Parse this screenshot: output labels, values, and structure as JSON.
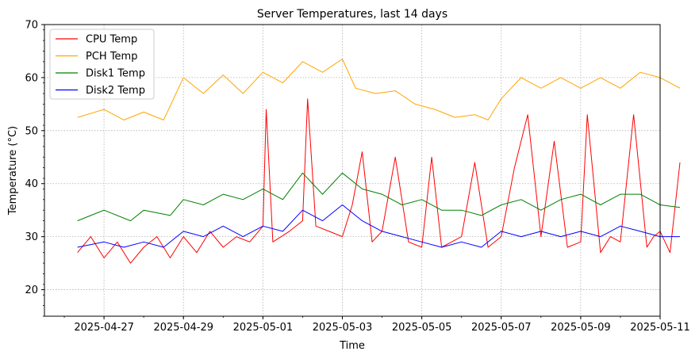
{
  "chart_data": {
    "type": "line",
    "title": "Server Temperatures, last 14 days",
    "xlabel": "Time",
    "ylabel": "Temperature (°C)",
    "xlim": [
      "2025-04-25T12:00",
      "2025-05-11T00:00"
    ],
    "ylim": [
      15,
      70
    ],
    "x_ticks": [
      "2025-04-27",
      "2025-04-29",
      "2025-05-01",
      "2025-05-03",
      "2025-05-05",
      "2025-05-07",
      "2025-05-09",
      "2025-05-11"
    ],
    "y_ticks": [
      20,
      30,
      40,
      50,
      60,
      70
    ],
    "grid": true,
    "legend_position": "top-left",
    "series": [
      {
        "name": "CPU Temp",
        "color": "#ff0000",
        "points": [
          [
            "2025-04-26T08:00",
            27
          ],
          [
            "2025-04-26T16:00",
            30
          ],
          [
            "2025-04-27T00:00",
            26
          ],
          [
            "2025-04-27T08:00",
            29
          ],
          [
            "2025-04-27T16:00",
            25
          ],
          [
            "2025-04-28T00:00",
            28
          ],
          [
            "2025-04-28T08:00",
            30
          ],
          [
            "2025-04-28T16:00",
            26
          ],
          [
            "2025-04-29T00:00",
            30
          ],
          [
            "2025-04-29T08:00",
            27
          ],
          [
            "2025-04-29T16:00",
            31
          ],
          [
            "2025-04-30T00:00",
            28
          ],
          [
            "2025-04-30T08:00",
            30
          ],
          [
            "2025-04-30T16:00",
            29
          ],
          [
            "2025-05-01T00:00",
            32
          ],
          [
            "2025-05-01T02:00",
            54
          ],
          [
            "2025-05-01T06:00",
            29
          ],
          [
            "2025-05-01T16:00",
            31
          ],
          [
            "2025-05-02T00:00",
            33
          ],
          [
            "2025-05-02T03:00",
            56
          ],
          [
            "2025-05-02T08:00",
            32
          ],
          [
            "2025-05-02T16:00",
            31
          ],
          [
            "2025-05-03T00:00",
            30
          ],
          [
            "2025-05-03T06:00",
            36
          ],
          [
            "2025-05-03T12:00",
            46
          ],
          [
            "2025-05-03T18:00",
            29
          ],
          [
            "2025-05-04T00:00",
            31
          ],
          [
            "2025-05-04T08:00",
            45
          ],
          [
            "2025-05-04T16:00",
            29
          ],
          [
            "2025-05-05T00:00",
            28
          ],
          [
            "2025-05-05T06:00",
            45
          ],
          [
            "2025-05-05T12:00",
            28
          ],
          [
            "2025-05-05T18:00",
            29
          ],
          [
            "2025-05-06T00:00",
            30
          ],
          [
            "2025-05-06T08:00",
            44
          ],
          [
            "2025-05-06T16:00",
            28
          ],
          [
            "2025-05-07T00:00",
            30
          ],
          [
            "2025-05-07T08:00",
            43
          ],
          [
            "2025-05-07T16:00",
            53
          ],
          [
            "2025-05-08T00:00",
            30
          ],
          [
            "2025-05-08T08:00",
            48
          ],
          [
            "2025-05-08T16:00",
            28
          ],
          [
            "2025-05-09T00:00",
            29
          ],
          [
            "2025-05-09T04:00",
            53
          ],
          [
            "2025-05-09T12:00",
            27
          ],
          [
            "2025-05-09T18:00",
            30
          ],
          [
            "2025-05-10T00:00",
            29
          ],
          [
            "2025-05-10T08:00",
            53
          ],
          [
            "2025-05-10T16:00",
            28
          ],
          [
            "2025-05-10T20:00",
            30
          ],
          [
            "2025-05-11T00:00",
            31
          ],
          [
            "2025-05-11T06:00",
            27
          ],
          [
            "2025-05-11T12:00",
            44
          ]
        ]
      },
      {
        "name": "PCH Temp",
        "color": "#ffa500",
        "points": [
          [
            "2025-04-26T08:00",
            52.5
          ],
          [
            "2025-04-27T00:00",
            54
          ],
          [
            "2025-04-27T12:00",
            52
          ],
          [
            "2025-04-28T00:00",
            53.5
          ],
          [
            "2025-04-28T12:00",
            52
          ],
          [
            "2025-04-29T00:00",
            60
          ],
          [
            "2025-04-29T12:00",
            57
          ],
          [
            "2025-04-30T00:00",
            60.5
          ],
          [
            "2025-04-30T12:00",
            57
          ],
          [
            "2025-05-01T00:00",
            61
          ],
          [
            "2025-05-01T12:00",
            59
          ],
          [
            "2025-05-02T00:00",
            63
          ],
          [
            "2025-05-02T12:00",
            61
          ],
          [
            "2025-05-03T00:00",
            63.5
          ],
          [
            "2025-05-03T08:00",
            58
          ],
          [
            "2025-05-03T20:00",
            57
          ],
          [
            "2025-05-04T08:00",
            57.5
          ],
          [
            "2025-05-04T20:00",
            55
          ],
          [
            "2025-05-05T08:00",
            54
          ],
          [
            "2025-05-05T20:00",
            52.5
          ],
          [
            "2025-05-06T08:00",
            53
          ],
          [
            "2025-05-06T16:00",
            52
          ],
          [
            "2025-05-07T00:00",
            56
          ],
          [
            "2025-05-07T12:00",
            60
          ],
          [
            "2025-05-08T00:00",
            58
          ],
          [
            "2025-05-08T12:00",
            60
          ],
          [
            "2025-05-09T00:00",
            58
          ],
          [
            "2025-05-09T12:00",
            60
          ],
          [
            "2025-05-10T00:00",
            58
          ],
          [
            "2025-05-10T12:00",
            61
          ],
          [
            "2025-05-11T00:00",
            60
          ],
          [
            "2025-05-11T12:00",
            58
          ]
        ]
      },
      {
        "name": "Disk1 Temp",
        "color": "#008000",
        "points": [
          [
            "2025-04-26T08:00",
            33
          ],
          [
            "2025-04-26T16:00",
            34
          ],
          [
            "2025-04-27T00:00",
            35
          ],
          [
            "2025-04-27T16:00",
            33
          ],
          [
            "2025-04-28T00:00",
            35
          ],
          [
            "2025-04-28T16:00",
            34
          ],
          [
            "2025-04-29T00:00",
            37
          ],
          [
            "2025-04-29T12:00",
            36
          ],
          [
            "2025-04-30T00:00",
            38
          ],
          [
            "2025-04-30T12:00",
            37
          ],
          [
            "2025-05-01T00:00",
            39
          ],
          [
            "2025-05-01T12:00",
            37
          ],
          [
            "2025-05-02T00:00",
            42
          ],
          [
            "2025-05-02T12:00",
            38
          ],
          [
            "2025-05-03T00:00",
            42
          ],
          [
            "2025-05-03T12:00",
            39
          ],
          [
            "2025-05-04T00:00",
            38
          ],
          [
            "2025-05-04T12:00",
            36
          ],
          [
            "2025-05-05T00:00",
            37
          ],
          [
            "2025-05-05T12:00",
            35
          ],
          [
            "2025-05-06T00:00",
            35
          ],
          [
            "2025-05-06T12:00",
            34
          ],
          [
            "2025-05-07T00:00",
            36
          ],
          [
            "2025-05-07T12:00",
            37
          ],
          [
            "2025-05-08T00:00",
            35
          ],
          [
            "2025-05-08T12:00",
            37
          ],
          [
            "2025-05-09T00:00",
            38
          ],
          [
            "2025-05-09T12:00",
            36
          ],
          [
            "2025-05-10T00:00",
            38
          ],
          [
            "2025-05-10T12:00",
            38
          ],
          [
            "2025-05-11T00:00",
            36
          ],
          [
            "2025-05-11T12:00",
            35.5
          ]
        ]
      },
      {
        "name": "Disk2 Temp",
        "color": "#0000ff",
        "points": [
          [
            "2025-04-26T08:00",
            28
          ],
          [
            "2025-04-27T00:00",
            29
          ],
          [
            "2025-04-27T12:00",
            28
          ],
          [
            "2025-04-28T00:00",
            29
          ],
          [
            "2025-04-28T12:00",
            28
          ],
          [
            "2025-04-29T00:00",
            31
          ],
          [
            "2025-04-29T12:00",
            30
          ],
          [
            "2025-04-30T00:00",
            32
          ],
          [
            "2025-04-30T12:00",
            30
          ],
          [
            "2025-05-01T00:00",
            32
          ],
          [
            "2025-05-01T12:00",
            31
          ],
          [
            "2025-05-02T00:00",
            35
          ],
          [
            "2025-05-02T12:00",
            33
          ],
          [
            "2025-05-03T00:00",
            36
          ],
          [
            "2025-05-03T12:00",
            33
          ],
          [
            "2025-05-04T00:00",
            31
          ],
          [
            "2025-05-04T12:00",
            30
          ],
          [
            "2025-05-05T00:00",
            29
          ],
          [
            "2025-05-05T12:00",
            28
          ],
          [
            "2025-05-06T00:00",
            29
          ],
          [
            "2025-05-06T12:00",
            28
          ],
          [
            "2025-05-07T00:00",
            31
          ],
          [
            "2025-05-07T12:00",
            30
          ],
          [
            "2025-05-08T00:00",
            31
          ],
          [
            "2025-05-08T12:00",
            30
          ],
          [
            "2025-05-09T00:00",
            31
          ],
          [
            "2025-05-09T12:00",
            30
          ],
          [
            "2025-05-10T00:00",
            32
          ],
          [
            "2025-05-10T12:00",
            31
          ],
          [
            "2025-05-11T00:00",
            30
          ],
          [
            "2025-05-11T12:00",
            30
          ]
        ]
      }
    ]
  }
}
